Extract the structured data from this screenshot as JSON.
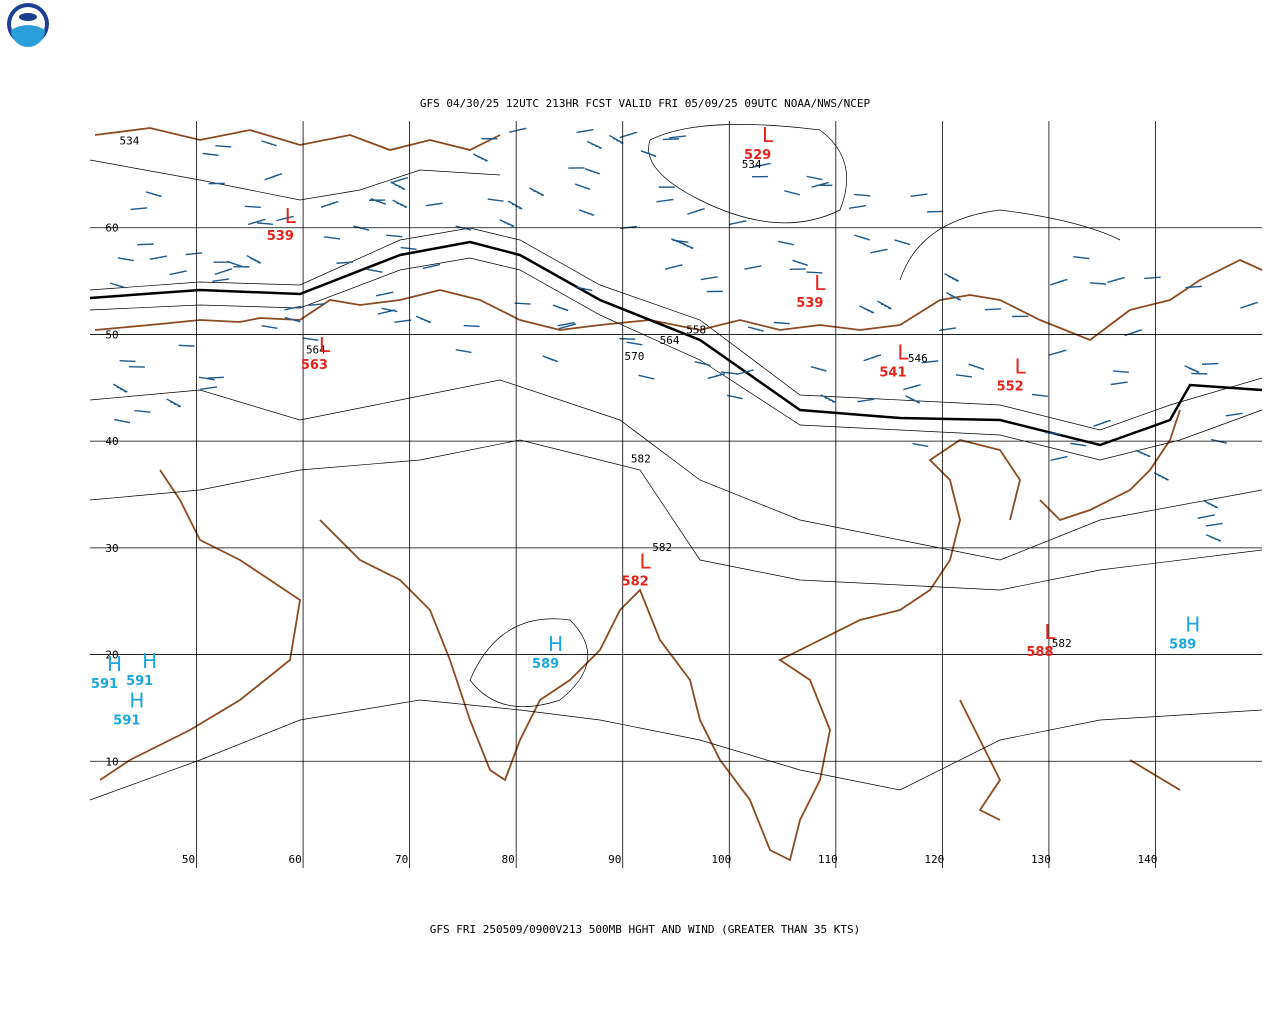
{
  "title": "GFS 04/30/25 12UTC 213HR FCST VALID FRI 05/09/25 09UTC NOAA/NWS/NCEP",
  "caption": "GFS FRI 250509/0900V213 500MB HGHT AND WIND (GREATER THAN 35 KTS)",
  "lonlim": [
    40,
    150
  ],
  "latlim": [
    0,
    70
  ],
  "lon_ticks": [
    50,
    60,
    70,
    80,
    90,
    100,
    110,
    120,
    130,
    140
  ],
  "lat_ticks": [
    10,
    20,
    30,
    40,
    50,
    60
  ],
  "colors": {
    "L": "#e8231c",
    "H": "#1aa7e0",
    "contour": "#000000"
  },
  "centers": [
    {
      "letter": "L",
      "value": "529",
      "lon": 103.6,
      "lat": 68.7
    },
    {
      "letter": "L",
      "value": "539",
      "lon": 58.8,
      "lat": 61.1
    },
    {
      "letter": "L",
      "value": "563",
      "lon": 62,
      "lat": 49
    },
    {
      "letter": "L",
      "value": "539",
      "lon": 108.5,
      "lat": 54.8
    },
    {
      "letter": "L",
      "value": "541",
      "lon": 116.3,
      "lat": 48.3
    },
    {
      "letter": "L",
      "value": "552",
      "lon": 127.3,
      "lat": 47
    },
    {
      "letter": "L",
      "value": "582",
      "lon": 92.1,
      "lat": 28.7
    },
    {
      "letter": "L",
      "value": "588",
      "lon": 130.1,
      "lat": 22.1
    },
    {
      "letter": "H",
      "value": "589",
      "lon": 83.7,
      "lat": 21
    },
    {
      "letter": "H",
      "value": "591",
      "lon": 42.3,
      "lat": 19.1
    },
    {
      "letter": "H",
      "value": "591",
      "lon": 45.6,
      "lat": 19.4
    },
    {
      "letter": "H",
      "value": "591",
      "lon": 44.4,
      "lat": 15.7
    },
    {
      "letter": "H",
      "value": "589",
      "lon": 143.5,
      "lat": 22.8
    }
  ],
  "contour_labels": [
    {
      "text": "534",
      "lon": 43.7,
      "lat": 67.8
    },
    {
      "text": "534",
      "lon": 102.1,
      "lat": 65.6
    },
    {
      "text": "558",
      "lon": 96.9,
      "lat": 50.1
    },
    {
      "text": "564",
      "lon": 94.4,
      "lat": 49.1
    },
    {
      "text": "570",
      "lon": 91.1,
      "lat": 47.6
    },
    {
      "text": "546",
      "lon": 117.7,
      "lat": 47.4
    },
    {
      "text": "564",
      "lon": 61.2,
      "lat": 48.2
    },
    {
      "text": "582",
      "lon": 91.7,
      "lat": 38
    },
    {
      "text": "582",
      "lon": 93.7,
      "lat": 29.7
    },
    {
      "text": "582",
      "lon": 131.2,
      "lat": 20.7
    }
  ]
}
